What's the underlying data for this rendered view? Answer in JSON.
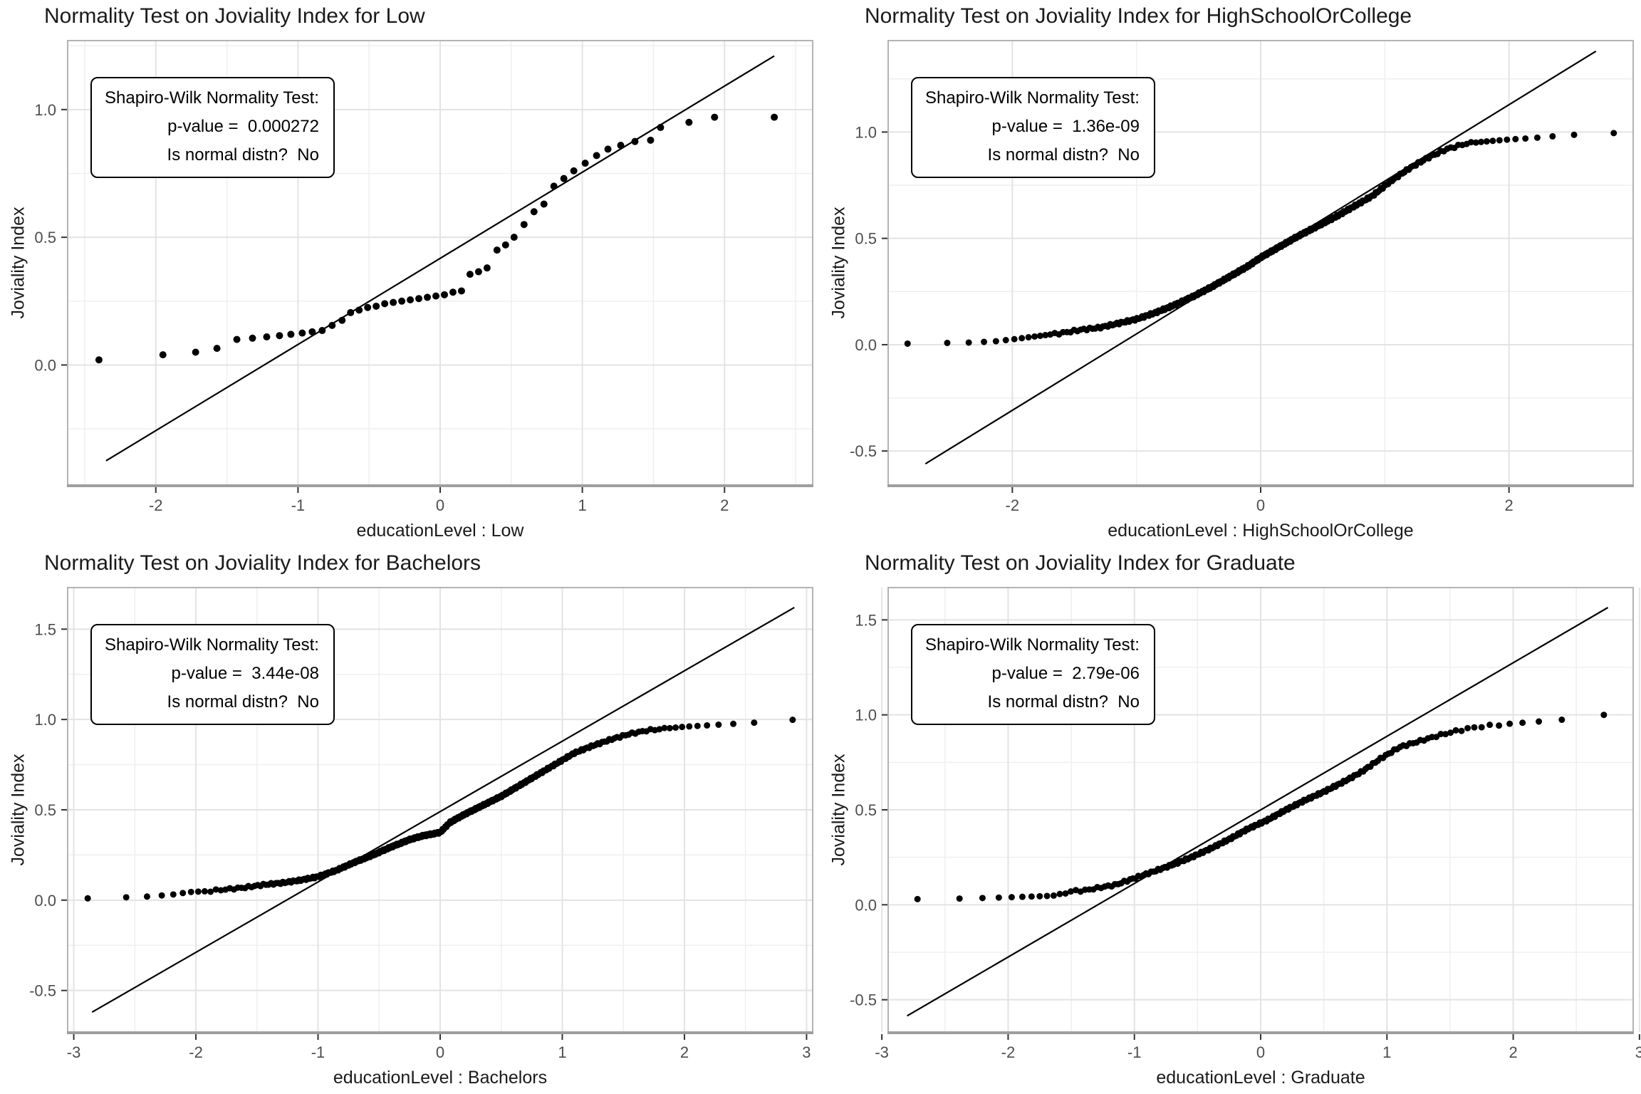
{
  "colors": {
    "background": "#ffffff",
    "point": "#000000",
    "ref_line": "#000000",
    "grid_major": "#e3e3e3",
    "grid_minor": "#efefef",
    "panel_border": "#b3b3b3",
    "axis_bottom": "#9e9e9e",
    "tick_mark": "#333333",
    "tick_label": "#4d4d4d",
    "title": "#1a1a1a",
    "annotation_border": "#000000"
  },
  "chart_data": [
    {
      "type": "scatter",
      "subtype": "qq-plot",
      "title": "Normality Test on Joviality Index for Low",
      "xlabel": "educationLevel : Low",
      "ylabel": "Joviality Index",
      "annotation": {
        "lines": [
          "Shapiro-Wilk Normality Test:",
          "p-value =  0.000272",
          "Is normal distn?  No"
        ]
      },
      "p_value": "0.000272",
      "is_normal": "No",
      "xlim": [
        -2.62,
        2.62
      ],
      "ylim": [
        -0.47,
        1.27
      ],
      "x_ticks": [
        -2,
        -1,
        0,
        1,
        2
      ],
      "x_tick_labels": [
        "-2",
        "-1",
        "0",
        "1",
        "2"
      ],
      "y_ticks": [
        0,
        0.5,
        1
      ],
      "y_tick_labels": [
        "0.0",
        "0.5",
        "1.0"
      ],
      "grid": true,
      "legend": "none",
      "ref_line": [
        [
          -2.35,
          -0.375
        ],
        [
          2.35,
          1.21
        ]
      ],
      "point_radius": 5,
      "points": [
        [
          -2.4,
          0.02
        ],
        [
          -1.95,
          0.04
        ],
        [
          -1.72,
          0.05
        ],
        [
          -1.57,
          0.065
        ],
        [
          -1.43,
          0.1
        ],
        [
          -1.32,
          0.105
        ],
        [
          -1.22,
          0.11
        ],
        [
          -1.13,
          0.115
        ],
        [
          -1.05,
          0.12
        ],
        [
          -0.97,
          0.125
        ],
        [
          -0.9,
          0.13
        ],
        [
          -0.83,
          0.135
        ],
        [
          -0.76,
          0.155
        ],
        [
          -0.69,
          0.175
        ],
        [
          -0.63,
          0.205
        ],
        [
          -0.57,
          0.215
        ],
        [
          -0.51,
          0.225
        ],
        [
          -0.45,
          0.23
        ],
        [
          -0.39,
          0.24
        ],
        [
          -0.33,
          0.245
        ],
        [
          -0.27,
          0.25
        ],
        [
          -0.21,
          0.255
        ],
        [
          -0.15,
          0.26
        ],
        [
          -0.09,
          0.265
        ],
        [
          -0.03,
          0.27
        ],
        [
          0.03,
          0.275
        ],
        [
          0.09,
          0.285
        ],
        [
          0.15,
          0.29
        ],
        [
          0.21,
          0.355
        ],
        [
          0.27,
          0.365
        ],
        [
          0.33,
          0.38
        ],
        [
          0.4,
          0.45
        ],
        [
          0.46,
          0.47
        ],
        [
          0.52,
          0.5
        ],
        [
          0.59,
          0.55
        ],
        [
          0.66,
          0.6
        ],
        [
          0.73,
          0.63
        ],
        [
          0.8,
          0.7
        ],
        [
          0.87,
          0.73
        ],
        [
          0.94,
          0.76
        ],
        [
          1.02,
          0.79
        ],
        [
          1.1,
          0.82
        ],
        [
          1.18,
          0.845
        ],
        [
          1.27,
          0.86
        ],
        [
          1.37,
          0.875
        ],
        [
          1.48,
          0.88
        ],
        [
          1.55,
          0.93
        ],
        [
          1.75,
          0.95
        ],
        [
          1.93,
          0.97
        ],
        [
          2.35,
          0.97
        ]
      ]
    },
    {
      "type": "scatter",
      "subtype": "qq-plot",
      "title": "Normality Test on Joviality Index for HighSchoolOrCollege",
      "xlabel": "educationLevel : HighSchoolOrCollege",
      "ylabel": "Joviality Index",
      "annotation": {
        "lines": [
          "Shapiro-Wilk Normality Test:",
          "p-value =  1.36e-09",
          "Is normal distn?  No"
        ]
      },
      "p_value": "1.36e-09",
      "is_normal": "No",
      "xlim": [
        -3.0,
        3.0
      ],
      "ylim": [
        -0.66,
        1.43
      ],
      "x_ticks": [
        -2,
        0,
        2
      ],
      "x_tick_labels": [
        "-2",
        "0",
        "2"
      ],
      "y_ticks": [
        -0.5,
        0,
        0.5,
        1
      ],
      "y_tick_labels": [
        "-0.5",
        "0.0",
        "0.5",
        "1.0"
      ],
      "grid": true,
      "legend": "none",
      "ref_line": [
        [
          -2.7,
          -0.56
        ],
        [
          2.7,
          1.38
        ]
      ],
      "point_radius": 4.5,
      "qq_curve": {
        "n": 280,
        "knots": [
          [
            -2.84,
            0.005
          ],
          [
            -2.55,
            0.008
          ],
          [
            -2.35,
            0.01
          ],
          [
            -2.15,
            0.015
          ],
          [
            -2.0,
            0.025
          ],
          [
            -1.8,
            0.04
          ],
          [
            -1.6,
            0.055
          ],
          [
            -1.45,
            0.07
          ],
          [
            -1.3,
            0.08
          ],
          [
            -1.15,
            0.1
          ],
          [
            -1.0,
            0.12
          ],
          [
            -0.85,
            0.15
          ],
          [
            -0.7,
            0.185
          ],
          [
            -0.55,
            0.225
          ],
          [
            -0.4,
            0.27
          ],
          [
            -0.25,
            0.32
          ],
          [
            -0.1,
            0.37
          ],
          [
            0.0,
            0.41
          ],
          [
            0.15,
            0.46
          ],
          [
            0.3,
            0.51
          ],
          [
            0.45,
            0.555
          ],
          [
            0.6,
            0.6
          ],
          [
            0.75,
            0.65
          ],
          [
            0.9,
            0.7
          ],
          [
            1.05,
            0.77
          ],
          [
            1.2,
            0.83
          ],
          [
            1.35,
            0.88
          ],
          [
            1.5,
            0.92
          ],
          [
            1.65,
            0.945
          ],
          [
            1.8,
            0.955
          ],
          [
            2.0,
            0.965
          ],
          [
            2.2,
            0.972
          ],
          [
            2.45,
            0.985
          ],
          [
            2.84,
            0.995
          ]
        ]
      }
    },
    {
      "type": "scatter",
      "subtype": "qq-plot",
      "title": "Normality Test on Joviality Index for Bachelors",
      "xlabel": "educationLevel : Bachelors",
      "ylabel": "Joviality Index",
      "annotation": {
        "lines": [
          "Shapiro-Wilk Normality Test:",
          "p-value =  3.44e-08",
          "Is normal distn?  No"
        ]
      },
      "p_value": "3.44e-08",
      "is_normal": "No",
      "xlim": [
        -3.05,
        3.05
      ],
      "ylim": [
        -0.73,
        1.73
      ],
      "x_ticks": [
        -3,
        -2,
        -1,
        0,
        1,
        2,
        3
      ],
      "x_tick_labels": [
        "-3",
        "-2",
        "-1",
        "0",
        "1",
        "2",
        "3"
      ],
      "y_ticks": [
        -0.5,
        0,
        0.5,
        1,
        1.5
      ],
      "y_tick_labels": [
        "-0.5",
        "0.0",
        "0.5",
        "1.0",
        "1.5"
      ],
      "grid": true,
      "legend": "none",
      "ref_line": [
        [
          -2.85,
          -0.62
        ],
        [
          2.9,
          1.62
        ]
      ],
      "point_radius": 4.5,
      "qq_curve": {
        "n": 320,
        "knots": [
          [
            -2.88,
            0.01
          ],
          [
            -2.6,
            0.015
          ],
          [
            -2.4,
            0.02
          ],
          [
            -2.2,
            0.03
          ],
          [
            -2.05,
            0.045
          ],
          [
            -1.9,
            0.05
          ],
          [
            -1.75,
            0.06
          ],
          [
            -1.6,
            0.07
          ],
          [
            -1.45,
            0.085
          ],
          [
            -1.3,
            0.095
          ],
          [
            -1.15,
            0.11
          ],
          [
            -1.0,
            0.13
          ],
          [
            -0.85,
            0.165
          ],
          [
            -0.7,
            0.21
          ],
          [
            -0.55,
            0.25
          ],
          [
            -0.4,
            0.295
          ],
          [
            -0.25,
            0.335
          ],
          [
            -0.15,
            0.355
          ],
          [
            -0.05,
            0.368
          ],
          [
            0.0,
            0.375
          ],
          [
            0.08,
            0.43
          ],
          [
            0.2,
            0.475
          ],
          [
            0.35,
            0.525
          ],
          [
            0.5,
            0.575
          ],
          [
            0.65,
            0.635
          ],
          [
            0.8,
            0.695
          ],
          [
            0.95,
            0.755
          ],
          [
            1.1,
            0.815
          ],
          [
            1.25,
            0.855
          ],
          [
            1.4,
            0.89
          ],
          [
            1.55,
            0.92
          ],
          [
            1.7,
            0.94
          ],
          [
            1.85,
            0.95
          ],
          [
            2.0,
            0.96
          ],
          [
            2.2,
            0.968
          ],
          [
            2.45,
            0.978
          ],
          [
            2.65,
            0.985
          ],
          [
            2.88,
            0.998
          ]
        ]
      }
    },
    {
      "type": "scatter",
      "subtype": "qq-plot",
      "title": "Normality Test on Joviality Index for Graduate",
      "xlabel": "educationLevel : Graduate",
      "ylabel": "Joviality Index",
      "annotation": {
        "lines": [
          "Shapiro-Wilk Normality Test:",
          "p-value =  2.79e-06",
          "Is normal distn?  No"
        ]
      },
      "p_value": "2.79e-06",
      "is_normal": "No",
      "xlim": [
        -2.95,
        2.95
      ],
      "ylim": [
        -0.67,
        1.67
      ],
      "x_ticks": [
        -3,
        -2,
        -1,
        0,
        1,
        2,
        3
      ],
      "x_tick_labels": [
        "-3",
        "-2",
        "-1",
        "0",
        "1",
        "2",
        "3"
      ],
      "y_ticks": [
        -0.5,
        0,
        0.5,
        1,
        1.5
      ],
      "y_tick_labels": [
        "-0.5",
        "0.0",
        "0.5",
        "1.0",
        "1.5"
      ],
      "grid": true,
      "legend": "none",
      "ref_line": [
        [
          -2.8,
          -0.585
        ],
        [
          2.75,
          1.565
        ]
      ],
      "point_radius": 4.5,
      "qq_curve": {
        "n": 190,
        "knots": [
          [
            -2.72,
            0.03
          ],
          [
            -2.45,
            0.032
          ],
          [
            -2.3,
            0.034
          ],
          [
            -2.18,
            0.036
          ],
          [
            -2.07,
            0.038
          ],
          [
            -1.97,
            0.04
          ],
          [
            -1.88,
            0.042
          ],
          [
            -1.79,
            0.044
          ],
          [
            -1.7,
            0.046
          ],
          [
            -1.6,
            0.05
          ],
          [
            -1.5,
            0.072
          ],
          [
            -1.4,
            0.075
          ],
          [
            -1.28,
            0.09
          ],
          [
            -1.15,
            0.105
          ],
          [
            -1.0,
            0.14
          ],
          [
            -0.85,
            0.175
          ],
          [
            -0.7,
            0.21
          ],
          [
            -0.55,
            0.25
          ],
          [
            -0.4,
            0.295
          ],
          [
            -0.25,
            0.345
          ],
          [
            -0.1,
            0.4
          ],
          [
            0.05,
            0.445
          ],
          [
            0.2,
            0.5
          ],
          [
            0.35,
            0.55
          ],
          [
            0.5,
            0.595
          ],
          [
            0.65,
            0.645
          ],
          [
            0.8,
            0.7
          ],
          [
            0.95,
            0.77
          ],
          [
            1.1,
            0.83
          ],
          [
            1.25,
            0.86
          ],
          [
            1.4,
            0.89
          ],
          [
            1.55,
            0.915
          ],
          [
            1.7,
            0.935
          ],
          [
            1.85,
            0.945
          ],
          [
            2.0,
            0.955
          ],
          [
            2.15,
            0.962
          ],
          [
            2.3,
            0.97
          ],
          [
            2.5,
            0.98
          ],
          [
            2.72,
            1.0
          ]
        ]
      }
    }
  ]
}
